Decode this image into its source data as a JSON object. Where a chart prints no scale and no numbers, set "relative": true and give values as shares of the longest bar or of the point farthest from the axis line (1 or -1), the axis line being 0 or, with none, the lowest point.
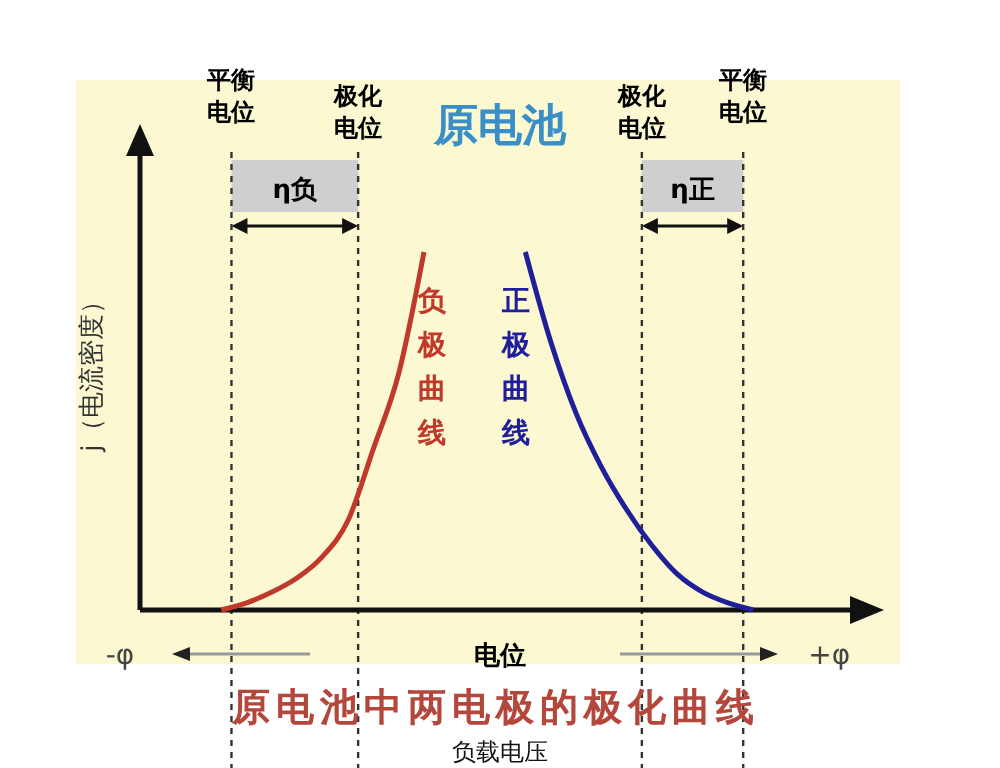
{
  "chart_data": {
    "type": "line",
    "title": "原电池",
    "xlabel": "电位",
    "ylabel": "j（电流密度）",
    "relative": true,
    "legend": false,
    "grid": false,
    "categories": [
      "-φ",
      null,
      null,
      null,
      null,
      null,
      null,
      null,
      null,
      null,
      null,
      null,
      null,
      null,
      null,
      null,
      null,
      null,
      null,
      null,
      null,
      null,
      null,
      null,
      null,
      null,
      null,
      null,
      "+φ",
      null,
      null
    ],
    "series": [
      {
        "name": "负极曲线",
        "color": "#c0392b",
        "values": [
          null,
          null,
          null,
          null,
          0,
          0.02,
          0.05,
          0.09,
          0.15,
          0.25,
          0.45,
          0.66,
          1,
          null,
          null,
          null,
          null,
          null,
          null,
          null,
          null,
          null,
          null,
          null,
          null,
          null,
          null,
          null,
          null,
          null,
          null
        ]
      },
      {
        "name": "正极曲线",
        "color": "#1f1f9a",
        "values": [
          null,
          null,
          null,
          null,
          null,
          null,
          null,
          null,
          null,
          null,
          null,
          null,
          null,
          null,
          null,
          null,
          1,
          0.75,
          0.55,
          0.4,
          0.28,
          0.18,
          0.1,
          0.05,
          0.02,
          0,
          null,
          null,
          null,
          null,
          null
        ]
      }
    ],
    "annotations": [
      "平衡电位",
      "极化电位",
      "极化电位",
      "平衡电位",
      "η负",
      "η正",
      "原电池中两电极的极化曲线",
      "负载电压"
    ]
  }
}
